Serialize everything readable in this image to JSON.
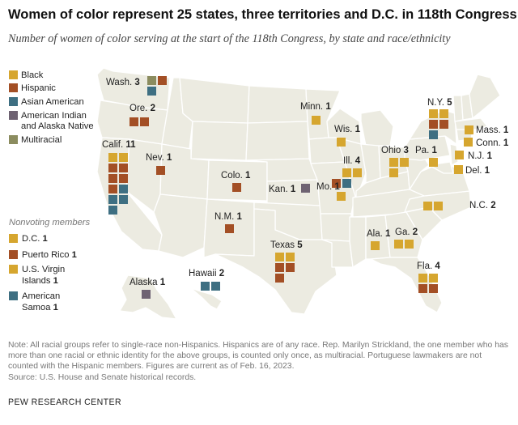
{
  "title": "Women of color represent 25 states, three territories and D.C. in 118th Congress",
  "subtitle": "Number of women of color serving at the start of the 118th Congress, by state and race/ethnicity",
  "notes": "Note: All racial groups refer to single-race non-Hispanics. Hispanics are of any race. Rep. Marilyn Strickland, the one member who has more than one racial or ethnic identity for the above groups, is counted only once, as multiracial. Portuguese lawmakers are not counted with the Hispanic members. Figures are current as of Feb. 16, 2023.",
  "source": "Source: U.S. House and Senate historical records.",
  "footer": "PEW RESEARCH CENTER",
  "colors": {
    "Black": "#d6a62f",
    "Hispanic": "#a34f25",
    "Asian American": "#3e6f82",
    "American Indian and Alaska Native": "#6e6272",
    "Multiracial": "#8b8c5f",
    "state_fill": "#ecebe1",
    "state_border": "#ffffff"
  },
  "chart_data": {
    "type": "symbol map",
    "title": "Women of color represent 25 states, three territories and D.C. in 118th Congress",
    "subtitle": "Number of women of color serving at the start of the 118th Congress, by state and race/ethnicity",
    "legend": [
      {
        "key": "Black",
        "label": "Black"
      },
      {
        "key": "Hispanic",
        "label": "Hispanic"
      },
      {
        "key": "Asian American",
        "label": "Asian American"
      },
      {
        "key": "American Indian and Alaska Native",
        "label": "American Indian and Alaska Native"
      },
      {
        "key": "Multiracial",
        "label": "Multiracial"
      }
    ],
    "nonvoting_heading": "Nonvoting members",
    "nonvoting": [
      {
        "name": "D.C.",
        "count": 1,
        "group": "Black"
      },
      {
        "name": "Puerto Rico",
        "count": 1,
        "group": "Hispanic"
      },
      {
        "name": "U.S. Virgin Islands",
        "count": 1,
        "group": "Black"
      },
      {
        "name": "American Samoa",
        "count": 1,
        "group": "Asian American"
      }
    ],
    "states": [
      {
        "name": "Wash.",
        "count": 3,
        "members": [
          "Multiracial",
          "Hispanic",
          "Asian American"
        ]
      },
      {
        "name": "Ore.",
        "count": 2,
        "members": [
          "Hispanic",
          "Hispanic"
        ]
      },
      {
        "name": "Calif.",
        "count": 11,
        "members": [
          "Black",
          "Black",
          "Hispanic",
          "Hispanic",
          "Hispanic",
          "Hispanic",
          "Hispanic",
          "Asian American",
          "Asian American",
          "Asian American",
          "Asian American"
        ]
      },
      {
        "name": "Nev.",
        "count": 1,
        "members": [
          "Hispanic"
        ]
      },
      {
        "name": "Colo.",
        "count": 1,
        "members": [
          "Hispanic"
        ]
      },
      {
        "name": "N.M.",
        "count": 1,
        "members": [
          "Hispanic"
        ]
      },
      {
        "name": "Kan.",
        "count": 1,
        "members": [
          "American Indian and Alaska Native"
        ]
      },
      {
        "name": "Texas",
        "count": 5,
        "members": [
          "Black",
          "Black",
          "Hispanic",
          "Hispanic",
          "Hispanic"
        ]
      },
      {
        "name": "Minn.",
        "count": 1,
        "members": [
          "Black"
        ]
      },
      {
        "name": "Wis.",
        "count": 1,
        "members": [
          "Black"
        ]
      },
      {
        "name": "Ill.",
        "count": 4,
        "members": [
          "Black",
          "Black",
          "Hispanic",
          "Asian American"
        ]
      },
      {
        "name": "Mo.",
        "count": 1,
        "members": [
          "Black"
        ]
      },
      {
        "name": "Ohio",
        "count": 3,
        "members": [
          "Black",
          "Black",
          "Black"
        ]
      },
      {
        "name": "Pa.",
        "count": 1,
        "members": [
          "Black"
        ]
      },
      {
        "name": "N.Y.",
        "count": 5,
        "members": [
          "Black",
          "Black",
          "Hispanic",
          "Hispanic",
          "Asian American"
        ]
      },
      {
        "name": "Mass.",
        "count": 1,
        "members": [
          "Black"
        ]
      },
      {
        "name": "Conn.",
        "count": 1,
        "members": [
          "Black"
        ]
      },
      {
        "name": "N.J.",
        "count": 1,
        "members": [
          "Black"
        ]
      },
      {
        "name": "Del.",
        "count": 1,
        "members": [
          "Black"
        ]
      },
      {
        "name": "N.C.",
        "count": 2,
        "members": [
          "Black",
          "Black"
        ]
      },
      {
        "name": "Ala.",
        "count": 1,
        "members": [
          "Black"
        ]
      },
      {
        "name": "Ga.",
        "count": 2,
        "members": [
          "Black",
          "Black"
        ]
      },
      {
        "name": "Fla.",
        "count": 4,
        "members": [
          "Black",
          "Black",
          "Hispanic",
          "Hispanic"
        ]
      },
      {
        "name": "Alaska",
        "count": 1,
        "members": [
          "American Indian and Alaska Native"
        ]
      },
      {
        "name": "Hawaii",
        "count": 2,
        "members": [
          "Asian American",
          "Asian American"
        ]
      }
    ]
  }
}
